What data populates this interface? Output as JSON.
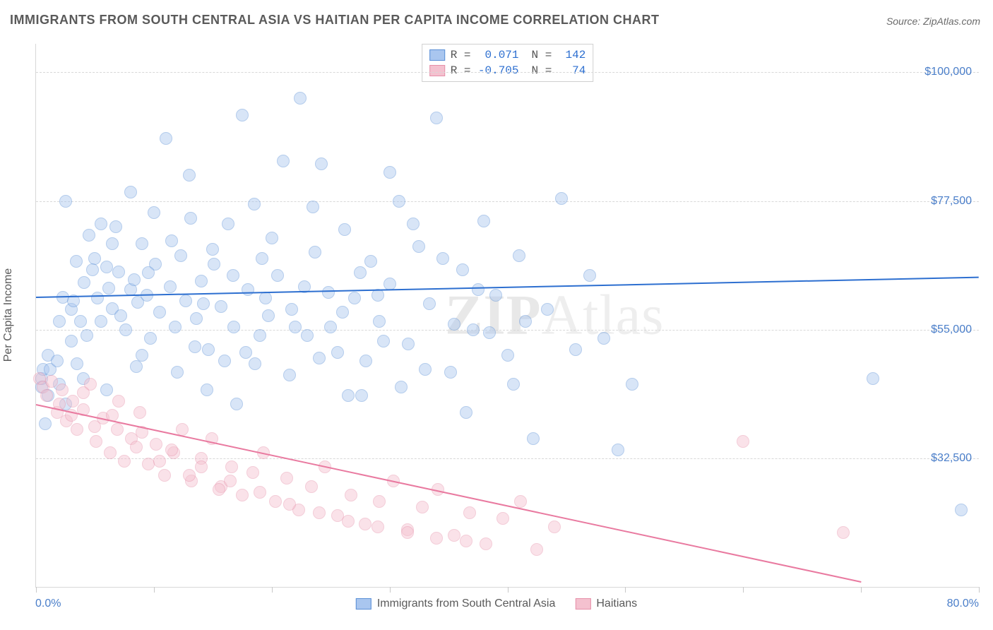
{
  "title": "IMMIGRANTS FROM SOUTH CENTRAL ASIA VS HAITIAN PER CAPITA INCOME CORRELATION CHART",
  "source": "Source: ZipAtlas.com",
  "watermark_part1": "ZIP",
  "watermark_part2": "Atlas",
  "chart": {
    "type": "scatter",
    "ylabel": "Per Capita Income",
    "xlim": [
      0,
      80
    ],
    "ylim": [
      10000,
      105000
    ],
    "xticks_label_min": "0.0%",
    "xticks_label_max": "80.0%",
    "xtick_positions": [
      0,
      10,
      20,
      30,
      40,
      50,
      60,
      70,
      80
    ],
    "ytick_positions": [
      32500,
      55000,
      77500,
      100000
    ],
    "ytick_labels": [
      "$32,500",
      "$55,000",
      "$77,500",
      "$100,000"
    ],
    "grid_color": "#d8d8d8",
    "background_color": "#ffffff",
    "axis_label_color": "#5a5a5a",
    "tick_label_color": "#4a7ec9",
    "marker_radius": 9,
    "marker_opacity": 0.45,
    "marker_stroke_opacity": 0.85,
    "series": [
      {
        "name": "Immigrants from South Central Asia",
        "key": "scasia",
        "fill_color": "#a9c6ef",
        "stroke_color": "#5a8fd6",
        "trend_color": "#2d6fd0",
        "R": "0.071",
        "N": "142",
        "trend": {
          "x1": 0,
          "y1": 60800,
          "x2": 80,
          "y2": 64300
        },
        "points": [
          [
            0.5,
            45000
          ],
          [
            0.5,
            46500
          ],
          [
            0.6,
            48000
          ],
          [
            0.8,
            38500
          ],
          [
            1.0,
            50500
          ],
          [
            1.0,
            43500
          ],
          [
            1.2,
            48000
          ],
          [
            1.8,
            49500
          ],
          [
            2.0,
            56500
          ],
          [
            2.3,
            60700
          ],
          [
            2.5,
            77500
          ],
          [
            3.0,
            58500
          ],
          [
            3.0,
            53000
          ],
          [
            3.2,
            60000
          ],
          [
            3.4,
            67000
          ],
          [
            3.8,
            56500
          ],
          [
            4.1,
            63300
          ],
          [
            4.3,
            54000
          ],
          [
            4.5,
            71500
          ],
          [
            5.0,
            67500
          ],
          [
            5.2,
            60500
          ],
          [
            5.5,
            56500
          ],
          [
            6.0,
            66000
          ],
          [
            6.2,
            62300
          ],
          [
            6.5,
            58700
          ],
          [
            6.8,
            73000
          ],
          [
            7.0,
            65100
          ],
          [
            7.2,
            57500
          ],
          [
            7.6,
            55000
          ],
          [
            8.0,
            62000
          ],
          [
            8.3,
            63800
          ],
          [
            8.6,
            59800
          ],
          [
            9.0,
            70000
          ],
          [
            9.4,
            61000
          ],
          [
            9.7,
            53500
          ],
          [
            10.1,
            66500
          ],
          [
            10.5,
            58000
          ],
          [
            11.0,
            88500
          ],
          [
            11.4,
            62500
          ],
          [
            11.8,
            55500
          ],
          [
            12.3,
            68000
          ],
          [
            12.7,
            60000
          ],
          [
            13.1,
            74500
          ],
          [
            13.6,
            57000
          ],
          [
            14.0,
            63500
          ],
          [
            14.6,
            51500
          ],
          [
            15.1,
            66500
          ],
          [
            15.7,
            59000
          ],
          [
            16.3,
            73500
          ],
          [
            16.8,
            55500
          ],
          [
            17.5,
            92500
          ],
          [
            18.0,
            62000
          ],
          [
            18.6,
            49000
          ],
          [
            19.2,
            67500
          ],
          [
            19.7,
            57500
          ],
          [
            20.5,
            64500
          ],
          [
            21.0,
            84500
          ],
          [
            21.7,
            58500
          ],
          [
            22.4,
            95500
          ],
          [
            23.0,
            54000
          ],
          [
            23.7,
            68500
          ],
          [
            24.2,
            84000
          ],
          [
            24.8,
            61500
          ],
          [
            25.6,
            51000
          ],
          [
            26.2,
            72500
          ],
          [
            27.0,
            60500
          ],
          [
            27.6,
            43500
          ],
          [
            28.4,
            67000
          ],
          [
            29.1,
            56500
          ],
          [
            30.0,
            63000
          ],
          [
            30.8,
            77500
          ],
          [
            31.6,
            52500
          ],
          [
            32.5,
            69500
          ],
          [
            33.4,
            59500
          ],
          [
            34.0,
            92000
          ],
          [
            35.2,
            47500
          ],
          [
            36.2,
            65500
          ],
          [
            37.1,
            55000
          ],
          [
            38.0,
            74000
          ],
          [
            39.0,
            61000
          ],
          [
            40.0,
            50500
          ],
          [
            41.0,
            68000
          ],
          [
            42.2,
            36000
          ],
          [
            43.4,
            58500
          ],
          [
            44.6,
            78000
          ],
          [
            45.8,
            51500
          ],
          [
            47.0,
            64500
          ],
          [
            48.2,
            53500
          ],
          [
            49.4,
            34000
          ],
          [
            50.6,
            45500
          ],
          [
            71.0,
            46500
          ],
          [
            78.5,
            23500
          ],
          [
            17.0,
            42000
          ],
          [
            6.0,
            44500
          ],
          [
            4.0,
            46500
          ],
          [
            3.5,
            49000
          ],
          [
            2.5,
            42000
          ],
          [
            2.0,
            45500
          ],
          [
            8.5,
            48500
          ],
          [
            12.0,
            47500
          ],
          [
            9.0,
            50500
          ],
          [
            13.5,
            52000
          ],
          [
            16.0,
            49500
          ],
          [
            19.0,
            54000
          ],
          [
            14.5,
            44500
          ],
          [
            17.8,
            51000
          ],
          [
            21.5,
            47000
          ],
          [
            24.0,
            50000
          ],
          [
            26.5,
            43500
          ],
          [
            31.0,
            45000
          ],
          [
            35.5,
            56000
          ],
          [
            28.0,
            49500
          ],
          [
            22.0,
            55500
          ],
          [
            33.0,
            48000
          ],
          [
            29.5,
            53000
          ],
          [
            38.5,
            54500
          ],
          [
            36.5,
            40500
          ],
          [
            41.5,
            56500
          ],
          [
            20.0,
            71000
          ],
          [
            23.5,
            76500
          ],
          [
            27.5,
            65000
          ],
          [
            32.0,
            73500
          ],
          [
            30.0,
            82500
          ],
          [
            25.0,
            55500
          ],
          [
            37.5,
            62000
          ],
          [
            34.5,
            67500
          ],
          [
            40.5,
            45500
          ],
          [
            15.0,
            69000
          ],
          [
            18.5,
            77000
          ],
          [
            11.5,
            70500
          ],
          [
            13.0,
            82000
          ],
          [
            10.0,
            75500
          ],
          [
            8.0,
            79000
          ],
          [
            5.5,
            73500
          ],
          [
            4.8,
            65500
          ],
          [
            6.5,
            70000
          ],
          [
            9.5,
            65000
          ],
          [
            14.2,
            59500
          ],
          [
            16.7,
            64500
          ],
          [
            19.5,
            60500
          ],
          [
            22.8,
            62500
          ],
          [
            26.0,
            58000
          ],
          [
            29.0,
            61000
          ]
        ]
      },
      {
        "name": "Haitians",
        "key": "haitians",
        "fill_color": "#f4c1cf",
        "stroke_color": "#e690a9",
        "trend_color": "#e97aa0",
        "R": "-0.705",
        "N": "74",
        "trend": {
          "x1": 0,
          "y1": 42000,
          "x2": 70,
          "y2": 11000
        },
        "points": [
          [
            0.3,
            46500
          ],
          [
            0.6,
            45000
          ],
          [
            0.9,
            43500
          ],
          [
            1.3,
            46000
          ],
          [
            1.8,
            40500
          ],
          [
            2.2,
            44500
          ],
          [
            2.6,
            39000
          ],
          [
            3.1,
            42500
          ],
          [
            3.5,
            37500
          ],
          [
            4.0,
            41000
          ],
          [
            4.6,
            45500
          ],
          [
            5.1,
            35500
          ],
          [
            5.7,
            39500
          ],
          [
            6.3,
            33500
          ],
          [
            6.9,
            37500
          ],
          [
            7.5,
            32000
          ],
          [
            8.1,
            36000
          ],
          [
            8.8,
            40500
          ],
          [
            9.5,
            31500
          ],
          [
            10.2,
            35000
          ],
          [
            10.9,
            29500
          ],
          [
            11.7,
            33500
          ],
          [
            12.4,
            37500
          ],
          [
            13.2,
            28500
          ],
          [
            14.0,
            32500
          ],
          [
            14.9,
            36000
          ],
          [
            15.7,
            27500
          ],
          [
            16.6,
            31000
          ],
          [
            17.5,
            26000
          ],
          [
            18.4,
            30000
          ],
          [
            19.3,
            33500
          ],
          [
            20.3,
            25000
          ],
          [
            21.3,
            29000
          ],
          [
            22.3,
            23500
          ],
          [
            23.4,
            27500
          ],
          [
            24.5,
            31000
          ],
          [
            25.6,
            22500
          ],
          [
            26.7,
            26000
          ],
          [
            27.9,
            21000
          ],
          [
            29.1,
            25000
          ],
          [
            30.3,
            28500
          ],
          [
            31.5,
            20000
          ],
          [
            32.8,
            24000
          ],
          [
            34.1,
            27000
          ],
          [
            35.5,
            19000
          ],
          [
            36.8,
            23000
          ],
          [
            38.2,
            17500
          ],
          [
            39.6,
            22000
          ],
          [
            41.1,
            25000
          ],
          [
            42.5,
            16500
          ],
          [
            44.0,
            20500
          ],
          [
            4.0,
            44000
          ],
          [
            6.5,
            40000
          ],
          [
            9.0,
            37000
          ],
          [
            11.5,
            34000
          ],
          [
            14.0,
            31000
          ],
          [
            16.5,
            28500
          ],
          [
            19.0,
            26500
          ],
          [
            21.5,
            24500
          ],
          [
            24.0,
            23000
          ],
          [
            26.5,
            21500
          ],
          [
            29.0,
            20500
          ],
          [
            31.5,
            19500
          ],
          [
            34.0,
            18500
          ],
          [
            36.5,
            18000
          ],
          [
            2.0,
            42000
          ],
          [
            3.0,
            40000
          ],
          [
            5.0,
            38000
          ],
          [
            7.0,
            42500
          ],
          [
            8.5,
            34500
          ],
          [
            10.5,
            32000
          ],
          [
            13.0,
            29500
          ],
          [
            15.5,
            27000
          ],
          [
            60.0,
            35500
          ],
          [
            68.5,
            19500
          ]
        ]
      }
    ]
  },
  "stat_legend": {
    "r_label": "R =",
    "n_label": "N ="
  },
  "colors": {
    "title_text": "#5a5a5a",
    "source_text": "#6a6a6a",
    "stat_value": "#2d6fd0"
  }
}
